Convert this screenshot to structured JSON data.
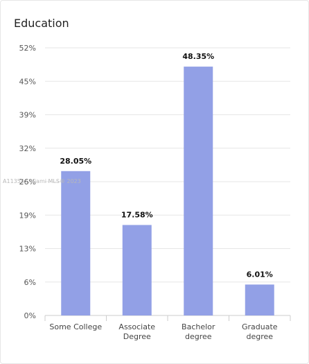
{
  "title": "Education",
  "watermark": "A11355…Miami MLS® 2023",
  "chart_data": {
    "type": "bar",
    "categories": [
      [
        "Some College"
      ],
      [
        "Associate",
        "Degree"
      ],
      [
        "Bachelor",
        "degree"
      ],
      [
        "Graduate",
        "degree"
      ]
    ],
    "values": [
      28.05,
      17.58,
      48.35,
      6.01
    ],
    "value_labels": [
      "28.05%",
      "17.58%",
      "48.35%",
      "6.01%"
    ],
    "yticks": [
      "52%",
      "45%",
      "39%",
      "32%",
      "26%",
      "19%",
      "13%",
      "6%",
      "0%"
    ],
    "ylim": [
      0,
      52
    ],
    "bar_color": "#92a0e6",
    "grid": true,
    "legend": "none"
  }
}
